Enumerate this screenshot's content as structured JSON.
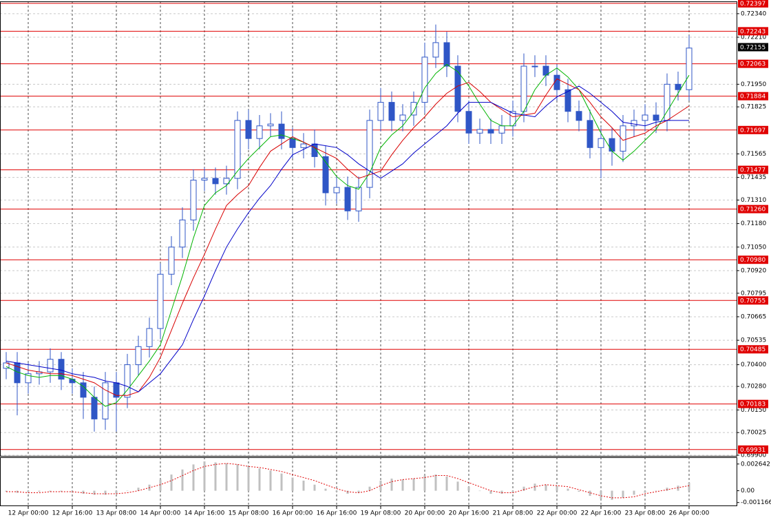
{
  "chart_data": [
    {
      "type": "candlestick",
      "categories": [
        null,
        null,
        "12 Apr 00:00",
        null,
        null,
        null,
        "12 Apr 16:00",
        null,
        null,
        null,
        "13 Apr 08:00",
        null,
        null,
        null,
        "14 Apr 00:00",
        null,
        null,
        null,
        "14 Apr 16:00",
        null,
        null,
        null,
        "15 Apr 08:00",
        null,
        null,
        null,
        "16 Apr 00:00",
        null,
        null,
        null,
        "16 Apr 16:00",
        null,
        null,
        null,
        "19 Apr 08:00",
        null,
        null,
        null,
        "20 Apr 00:00",
        null,
        null,
        null,
        "20 Apr 16:00",
        null,
        null,
        null,
        "21 Apr 08:00",
        null,
        null,
        null,
        "22 Apr 00:00",
        null,
        null,
        null,
        "22 Apr 16:00",
        null,
        null,
        null,
        "23 Apr 08:00",
        null,
        null,
        null,
        "26 Apr 00:00"
      ],
      "open": [
        0.7038,
        0.7041,
        0.703,
        0.7035,
        0.7036,
        0.7043,
        0.7032,
        0.703,
        0.7022,
        0.701,
        0.703,
        0.7022,
        0.704,
        0.705,
        0.706,
        0.709,
        0.7105,
        0.712,
        0.7142,
        0.7143,
        0.714,
        0.7143,
        0.7175,
        0.7165,
        0.7172,
        0.7173,
        0.7165,
        0.716,
        0.7162,
        0.7155,
        0.7135,
        0.7138,
        0.7125,
        0.7138,
        0.7175,
        0.7185,
        0.7175,
        0.7178,
        0.7185,
        0.721,
        0.7218,
        0.7205,
        0.718,
        0.7168,
        0.717,
        0.7168,
        0.7172,
        0.718,
        0.7205,
        0.7205,
        0.72,
        0.7192,
        0.718,
        0.7175,
        0.716,
        0.7165,
        0.7158,
        0.7172,
        0.7175,
        0.7178,
        0.7175,
        0.7195,
        0.7192
      ],
      "high": [
        0.7047,
        0.7047,
        0.7041,
        0.7042,
        0.7049,
        0.7047,
        0.7038,
        0.7036,
        0.7028,
        0.7036,
        0.7036,
        0.7046,
        0.7056,
        0.7066,
        0.7096,
        0.7111,
        0.7127,
        0.7148,
        0.7149,
        0.7149,
        0.715,
        0.718,
        0.7181,
        0.7178,
        0.7179,
        0.718,
        0.7171,
        0.7168,
        0.717,
        0.7161,
        0.7144,
        0.7144,
        0.7144,
        0.7181,
        0.7193,
        0.7191,
        0.7184,
        0.7191,
        0.7218,
        0.7228,
        0.7224,
        0.7211,
        0.7186,
        0.7176,
        0.7176,
        0.7178,
        0.7186,
        0.7212,
        0.7211,
        0.7211,
        0.7206,
        0.7198,
        0.7186,
        0.7181,
        0.7171,
        0.7171,
        0.7178,
        0.7181,
        0.7184,
        0.7185,
        0.7201,
        0.7202,
        0.7222
      ],
      "low": [
        0.7032,
        0.7012,
        0.7024,
        0.7029,
        0.703,
        0.7026,
        0.7024,
        0.701,
        0.7003,
        0.7004,
        0.7003,
        0.7016,
        0.7034,
        0.7044,
        0.7054,
        0.7084,
        0.7099,
        0.7114,
        0.7136,
        0.7134,
        0.7134,
        0.7137,
        0.7159,
        0.7159,
        0.7166,
        0.7159,
        0.7154,
        0.7154,
        0.7149,
        0.7128,
        0.7129,
        0.712,
        0.7119,
        0.7132,
        0.7169,
        0.7169,
        0.7169,
        0.7172,
        0.7179,
        0.7204,
        0.7199,
        0.7174,
        0.7162,
        0.7162,
        0.7162,
        0.7162,
        0.7166,
        0.7174,
        0.7199,
        0.7194,
        0.7186,
        0.7174,
        0.7169,
        0.7154,
        0.7143,
        0.715,
        0.7152,
        0.7166,
        0.7169,
        0.7168,
        0.7169,
        0.7186,
        0.7186
      ],
      "close": [
        0.7041,
        0.703,
        0.7035,
        0.7036,
        0.7043,
        0.7032,
        0.703,
        0.7022,
        0.701,
        0.703,
        0.7022,
        0.704,
        0.705,
        0.706,
        0.709,
        0.7105,
        0.712,
        0.7142,
        0.7143,
        0.714,
        0.7143,
        0.7175,
        0.7165,
        0.7172,
        0.7173,
        0.7165,
        0.716,
        0.7162,
        0.7155,
        0.7135,
        0.7138,
        0.7125,
        0.7138,
        0.7175,
        0.7185,
        0.7175,
        0.7178,
        0.7185,
        0.721,
        0.7218,
        0.7205,
        0.718,
        0.7168,
        0.717,
        0.7168,
        0.7172,
        0.718,
        0.7205,
        0.7205,
        0.72,
        0.7192,
        0.718,
        0.7175,
        0.716,
        0.7165,
        0.7158,
        0.7172,
        0.7175,
        0.7178,
        0.7175,
        0.7195,
        0.7192,
        0.7215
      ],
      "color": "#2f56c6",
      "lines": [
        {
          "color": "#00b400",
          "values": [
            0.7039,
            0.7036,
            0.7034,
            0.7033,
            0.7034,
            0.7034,
            0.7032,
            0.7028,
            0.7022,
            0.7017,
            0.7019,
            0.7026,
            0.7034,
            0.7042,
            0.7051,
            0.707,
            0.7089,
            0.711,
            0.7128,
            0.7135,
            0.7139,
            0.7147,
            0.7154,
            0.716,
            0.7166,
            0.7167,
            0.7165,
            0.7163,
            0.716,
            0.7152,
            0.7144,
            0.7139,
            0.7137,
            0.7146,
            0.716,
            0.7167,
            0.7172,
            0.718,
            0.7193,
            0.7201,
            0.7206,
            0.7202,
            0.7194,
            0.7184,
            0.7175,
            0.7172,
            0.7172,
            0.718,
            0.7192,
            0.72,
            0.7204,
            0.7199,
            0.7192,
            0.718,
            0.7168,
            0.7158,
            0.7153,
            0.7158,
            0.7164,
            0.717,
            0.718,
            0.719,
            0.72
          ]
        },
        {
          "color": "#d80000",
          "values": [
            0.7041,
            0.7039,
            0.7037,
            0.7036,
            0.7035,
            0.7035,
            0.7034,
            0.7032,
            0.703,
            0.7026,
            0.7023,
            0.7023,
            0.7025,
            0.7033,
            0.7044,
            0.7059,
            0.7074,
            0.7088,
            0.7101,
            0.7115,
            0.7128,
            0.7134,
            0.7139,
            0.7149,
            0.7158,
            0.7162,
            0.7166,
            0.7163,
            0.716,
            0.7157,
            0.7154,
            0.7148,
            0.7143,
            0.7145,
            0.7147,
            0.7156,
            0.7164,
            0.7171,
            0.7177,
            0.7184,
            0.719,
            0.7194,
            0.7196,
            0.7191,
            0.7185,
            0.7181,
            0.7177,
            0.7178,
            0.7179,
            0.7189,
            0.7198,
            0.7195,
            0.7192,
            0.7185,
            0.7177,
            0.7171,
            0.7164,
            0.7166,
            0.7168,
            0.7172,
            0.7175,
            0.7179,
            0.7183
          ]
        },
        {
          "color": "#0000c8",
          "values": [
            0.7042,
            0.7041,
            0.704,
            0.7039,
            0.7038,
            0.7037,
            0.7035,
            0.7034,
            0.7033,
            0.7031,
            0.703,
            0.7028,
            0.7025,
            0.703,
            0.7035,
            0.7043,
            0.7051,
            0.7065,
            0.7078,
            0.7092,
            0.7105,
            0.7115,
            0.7124,
            0.7132,
            0.7139,
            0.7148,
            0.7156,
            0.7159,
            0.7162,
            0.7161,
            0.716,
            0.7156,
            0.7151,
            0.7147,
            0.7143,
            0.7147,
            0.7151,
            0.7157,
            0.7162,
            0.7167,
            0.7172,
            0.7179,
            0.7185,
            0.7185,
            0.7185,
            0.7182,
            0.7179,
            0.7178,
            0.7177,
            0.7183,
            0.7188,
            0.7191,
            0.7194,
            0.719,
            0.7185,
            0.718,
            0.7174,
            0.7173,
            0.7172,
            0.7174,
            0.7175,
            0.7175,
            0.7175
          ]
        }
      ],
      "ylim": [
        0.69896,
        0.72408
      ],
      "yticks": [
        {
          "value": 0.7234,
          "label": "0.72340"
        },
        {
          "value": 0.7221,
          "label": "0.72210"
        },
        {
          "value": 0.7195,
          "label": "0.71950"
        },
        {
          "value": 0.71825,
          "label": "0.71825"
        },
        {
          "value": 0.71565,
          "label": "0.71565"
        },
        {
          "value": 0.71435,
          "label": "0.71435"
        },
        {
          "value": 0.7131,
          "label": "0.71310"
        },
        {
          "value": 0.7118,
          "label": "0.71180"
        },
        {
          "value": 0.7105,
          "label": "0.71050"
        },
        {
          "value": 0.7092,
          "label": "0.70920"
        },
        {
          "value": 0.70795,
          "label": "0.70795"
        },
        {
          "value": 0.70665,
          "label": "0.70665"
        },
        {
          "value": 0.70535,
          "label": "0.70535"
        },
        {
          "value": 0.704,
          "label": "0.70400"
        },
        {
          "value": 0.7028,
          "label": "0.70280"
        },
        {
          "value": 0.7015,
          "label": "0.70150"
        },
        {
          "value": 0.70025,
          "label": "0.70025"
        },
        {
          "value": 0.699,
          "label": "0.69900"
        }
      ],
      "grid": true,
      "levels": [
        {
          "value": 0.72397,
          "label": "0.72397"
        },
        {
          "value": 0.72243,
          "label": "0.72243"
        },
        {
          "value": 0.72063,
          "label": "0.72063"
        },
        {
          "value": 0.71884,
          "label": "0.71884"
        },
        {
          "value": 0.71697,
          "label": "0.71697"
        },
        {
          "value": 0.71477,
          "label": "0.71477"
        },
        {
          "value": 0.7126,
          "label": "0.71260"
        },
        {
          "value": 0.7098,
          "label": "0.70980"
        },
        {
          "value": 0.70755,
          "label": "0.70755"
        },
        {
          "value": 0.70485,
          "label": "0.70485"
        },
        {
          "value": 0.70183,
          "label": "0.70183"
        },
        {
          "value": 0.69931,
          "label": "0.69931"
        }
      ],
      "level_color": "#e00000",
      "last_price": 0.72155
    },
    {
      "type": "oscillator",
      "values": [
        -0.0001,
        -0.0002,
        -0.0002,
        -0.0001,
        -0.0001,
        -0.0001,
        -0.0002,
        -0.0003,
        -0.0004,
        -0.0004,
        -0.0003,
        0.0,
        0.0003,
        0.0006,
        0.0011,
        0.0016,
        0.0021,
        0.0026,
        0.0029,
        0.0028,
        0.0027,
        0.0026,
        0.0024,
        0.0022,
        0.002,
        0.0017,
        0.0013,
        0.001,
        0.0006,
        0.0002,
        -0.0001,
        -0.0003,
        -0.0002,
        0.0004,
        0.001,
        0.0012,
        0.0011,
        0.0012,
        0.0015,
        0.0016,
        0.0014,
        0.0009,
        0.0004,
        0.0,
        -0.0003,
        -0.0003,
        -0.0002,
        0.0004,
        0.0007,
        0.0006,
        0.0005,
        0.0002,
        -0.0001,
        -0.0005,
        -0.0008,
        -0.0009,
        -0.0007,
        -0.0004,
        -0.0002,
        0.0,
        0.0003,
        0.0005,
        0.0008
      ],
      "color": "#c0c0c0",
      "signal": {
        "color": "#e00000",
        "values": [
          -0.0001,
          -0.0001,
          -0.0002,
          -0.0002,
          -0.0001,
          -0.0001,
          -0.0001,
          -0.0002,
          -0.0003,
          -0.0003,
          -0.0003,
          -0.0002,
          0.0,
          0.0003,
          0.0006,
          0.001,
          0.0015,
          0.002,
          0.0024,
          0.0026,
          0.0027,
          0.0026,
          0.0024,
          0.0023,
          0.0021,
          0.0019,
          0.0016,
          0.0013,
          0.001,
          0.0006,
          0.0002,
          -0.0001,
          -0.0002,
          0.0,
          0.0005,
          0.0009,
          0.0011,
          0.0012,
          0.0013,
          0.0015,
          0.0015,
          0.0012,
          0.0008,
          0.0004,
          0.0,
          -0.0002,
          -0.0002,
          0.0001,
          0.0004,
          0.0006,
          0.0005,
          0.0004,
          0.0001,
          -0.0002,
          -0.0005,
          -0.0007,
          -0.0007,
          -0.0006,
          -0.0003,
          -0.0001,
          0.0001,
          0.0003,
          0.0005
        ]
      },
      "ylim": [
        -0.00139,
        0.00324
      ],
      "yticks": [
        0.002642,
        {
          "value": 0,
          "label": "0.00"
        },
        -0.001166
      ]
    }
  ]
}
